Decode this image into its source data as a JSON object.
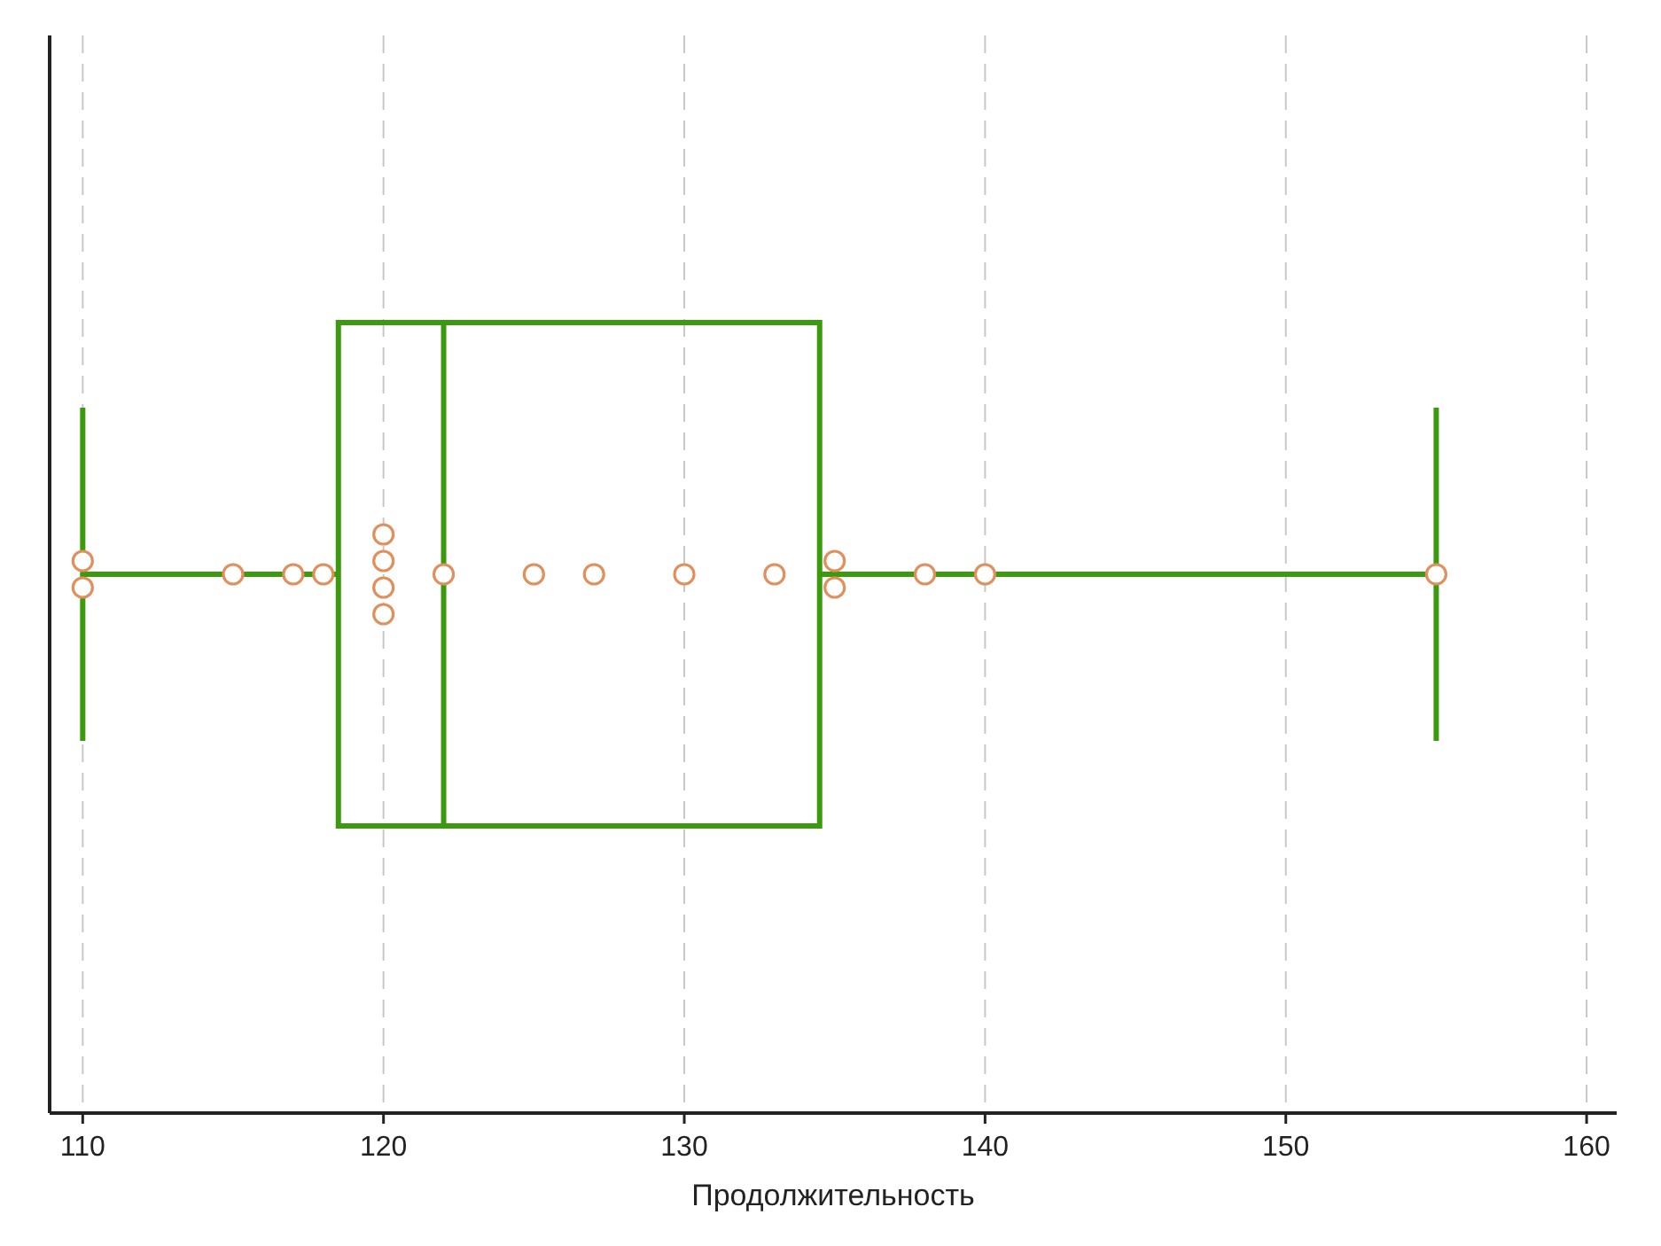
{
  "chart_data": {
    "type": "box",
    "orientation": "horizontal",
    "xlabel": "Продолжительность",
    "categories": [
      null
    ],
    "xlim": [
      108.9,
      161
    ],
    "xticks": [
      110,
      120,
      130,
      140,
      150,
      160
    ],
    "grid": "x",
    "tick_labels": "x",
    "marker": "circle",
    "series": [
      {
        "type": "box",
        "color": "#3c9a0e",
        "boxes": [
          {
            "low": 110,
            "q1": 118.5,
            "median": 122,
            "q3": 134.5,
            "high": 155
          }
        ]
      },
      {
        "type": "scatter",
        "color": "#e0905c",
        "x": [
          null,
          null,
          null,
          null,
          null,
          null,
          null,
          null,
          null,
          null,
          null,
          null,
          null,
          null,
          null,
          null,
          null,
          null,
          null
        ],
        "values": [
          110,
          110,
          115,
          117,
          118,
          120,
          120,
          120,
          120,
          122,
          125,
          127,
          130,
          133,
          135,
          135,
          138,
          140,
          155
        ]
      }
    ]
  }
}
